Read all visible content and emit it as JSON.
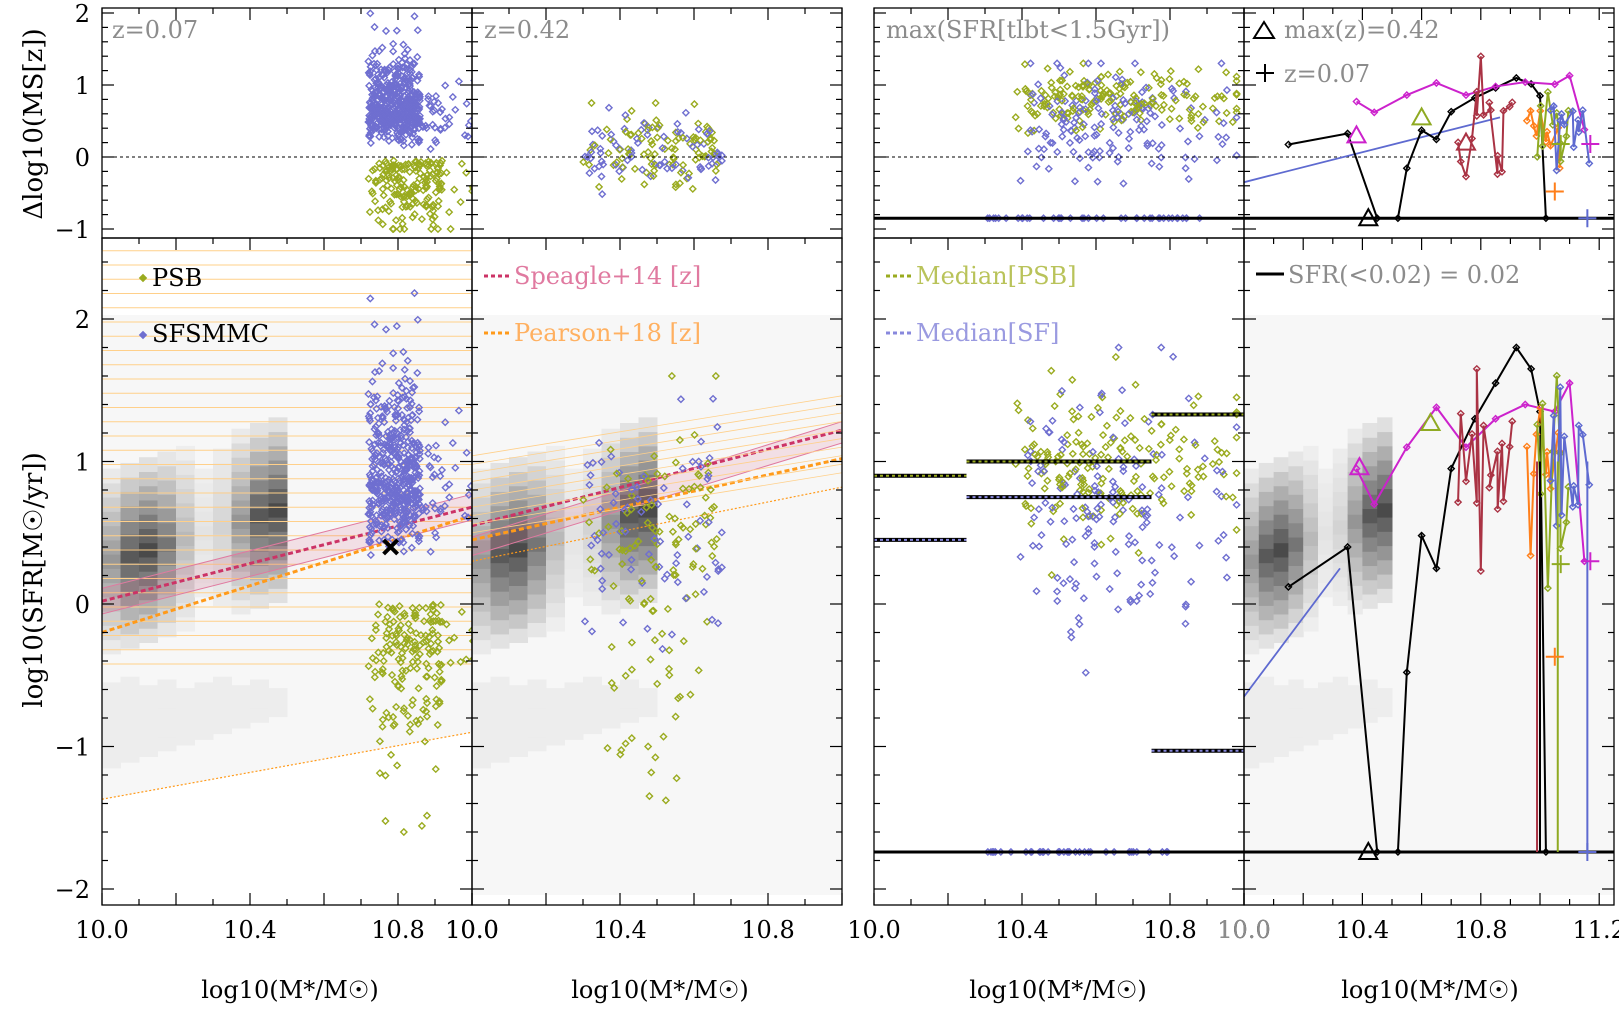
{
  "figure": {
    "ylabel_top": "Δlog10(MS[z])",
    "ylabel_bottom": "log10(SFR[M☉/yr])",
    "xlabel": "log10(M*/M☉)"
  },
  "colors": {
    "psb": "#9aab1f",
    "sf": "#6f6fd0",
    "speagle": "#cc3366",
    "pearson": "#ff9a1a",
    "median_psb": "#9aab1f",
    "median_sf": "#8888dd",
    "magenta": "#cc22cc",
    "darkred": "#aa3344",
    "orange": "#ff7f1a",
    "olive": "#8faa22",
    "blue": "#5e6ad0",
    "black": "#000000",
    "label_gray": "#8c8c8c"
  },
  "chart_data": [
    {
      "panel": "left-pair (z=0.07 / z=0.42)",
      "type": "scatter",
      "top_annotations": [
        "z=0.07",
        "z=0.42"
      ],
      "legend": [
        "PSB",
        "SFSMMC",
        "Speagle+14 [z]",
        "Pearson+18 [z]"
      ],
      "x_ticks_panel1": [
        "10.0",
        "10.4",
        "10.8"
      ],
      "x_ticks_panel2": [
        "10.0",
        "10.4",
        "10.8"
      ],
      "y_ticks_top": [
        "2",
        "1",
        "0",
        "−1"
      ],
      "y_ticks_bottom": [
        "2",
        "1",
        "0",
        "−1",
        "−2"
      ],
      "xlim": [
        10.0,
        11.0
      ],
      "ylim_top": [
        -1.1,
        2.1
      ],
      "ylim_bottom": [
        -2.1,
        2.5
      ],
      "speagle_line": {
        "x": [
          10.0,
          11.0
        ],
        "y": [
          0.02,
          0.68
        ]
      },
      "pearson_line": {
        "x": [
          10.0,
          11.0
        ],
        "y": [
          -0.2,
          0.62
        ]
      },
      "pearson_band_low": {
        "x": [
          10.0,
          11.0
        ],
        "y": [
          -1.37,
          -0.9
        ]
      },
      "marker_x": {
        "x": 10.78,
        "y": 0.4
      }
    },
    {
      "panel": "right-pair (max SFR / max(z)=0.42)",
      "type": "line",
      "top_annotations": [
        "max(SFR[tlbt<1.5Gyr])",
        "max(z)=0.42",
        "z=0.07"
      ],
      "legend": [
        "Median[PSB]",
        "Median[SF]",
        "SFR(<0.02) = 0.02"
      ],
      "x_ticks_panel3": [
        "10.0",
        "10.4",
        "10.8"
      ],
      "x_ticks_panel4": [
        "10.0",
        "10.4",
        "10.8",
        "11.2"
      ],
      "xlim": [
        10.0,
        11.0
      ],
      "xlim_panel4": [
        10.0,
        11.25
      ],
      "median_psb_steps": [
        {
          "x0": 10.0,
          "x1": 10.25,
          "y": 0.9
        },
        {
          "x0": 10.25,
          "x1": 10.75,
          "y": 1.0
        },
        {
          "x0": 10.75,
          "x1": 11.0,
          "y": 1.33
        }
      ],
      "median_sf_steps": [
        {
          "x0": 10.0,
          "x1": 10.25,
          "y": 0.45
        },
        {
          "x0": 10.25,
          "x1": 10.75,
          "y": 0.75
        },
        {
          "x0": 10.75,
          "x1": 11.0,
          "y": -1.03
        }
      ],
      "floor_level": -1.74,
      "tracks": {
        "black": {
          "x": [
            10.15,
            10.35,
            10.45,
            10.52,
            10.55,
            10.6,
            10.65,
            10.7,
            10.78,
            10.85,
            10.92,
            10.97,
            11.0,
            11.02
          ],
          "y": [
            0.12,
            0.4,
            -1.74,
            -1.74,
            -0.48,
            0.48,
            0.25,
            0.95,
            1.3,
            1.55,
            1.8,
            1.65,
            1.35,
            -1.74
          ]
        },
        "magenta": {
          "x": [
            10.38,
            10.44,
            10.55,
            10.65,
            10.75,
            10.85,
            10.95,
            11.05,
            11.1,
            11.15
          ],
          "y": [
            0.95,
            0.7,
            1.1,
            1.38,
            1.1,
            1.3,
            1.4,
            1.35,
            1.55,
            0.3
          ]
        }
      }
    }
  ]
}
